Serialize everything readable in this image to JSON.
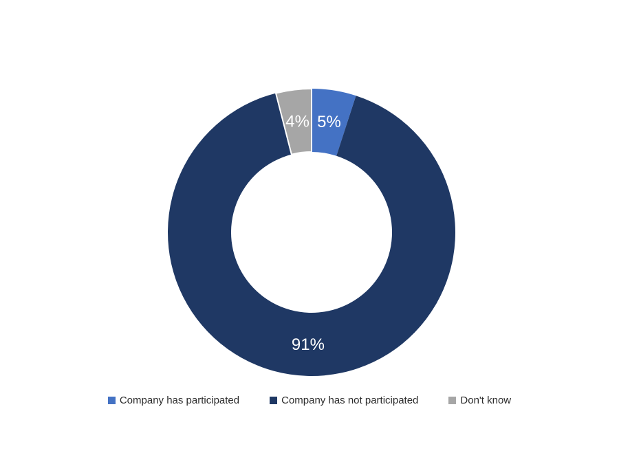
{
  "page": {
    "background_color": "#FFFFFF"
  },
  "chart_data": {
    "type": "pie",
    "subtype": "donut",
    "title": "",
    "slices": [
      {
        "label": "Company has participated",
        "value": 5,
        "display": "5%",
        "color": "#4472C4",
        "border": false
      },
      {
        "label": "Company has not participated",
        "value": 91,
        "display": "91%",
        "color": "#1F3864",
        "border": false
      },
      {
        "label": "Don't know",
        "value": 4,
        "display": "4%",
        "color": "#A6A6A6",
        "border": true
      }
    ],
    "start_angle_deg": 0,
    "direction": "clockwise",
    "hole_ratio": 0.56,
    "data_label_color": "#FFFFFF",
    "separator_color": "#FFFFFF",
    "legend_position": "bottom",
    "legend_text_color": "#2b2b2b",
    "grid": false
  }
}
